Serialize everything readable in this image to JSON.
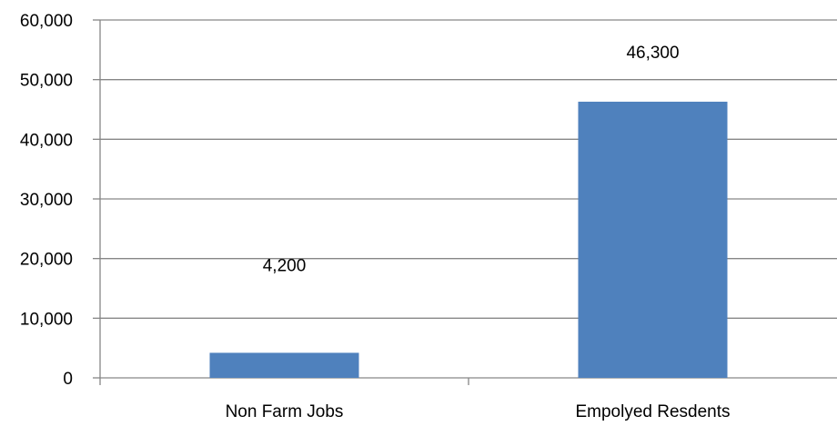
{
  "chart_data": {
    "type": "bar",
    "categories": [
      "Non Farm Jobs",
      "Empolyed Resdents"
    ],
    "values": [
      4200,
      46300
    ],
    "value_labels": [
      "4,200",
      "46,300"
    ],
    "ylim": [
      0,
      60000
    ],
    "yticks": [
      0,
      10000,
      20000,
      30000,
      40000,
      50000,
      60000
    ],
    "ytick_labels": [
      "0",
      "10,000",
      "20,000",
      "30,000",
      "40,000",
      "50,000",
      "60,000"
    ],
    "title": "",
    "xlabel": "",
    "ylabel": "",
    "grid": true,
    "legend": "none",
    "colors": {
      "bar": "#4F81BD",
      "grid": "#868686",
      "axis": "#868686",
      "text": "#000000"
    }
  }
}
